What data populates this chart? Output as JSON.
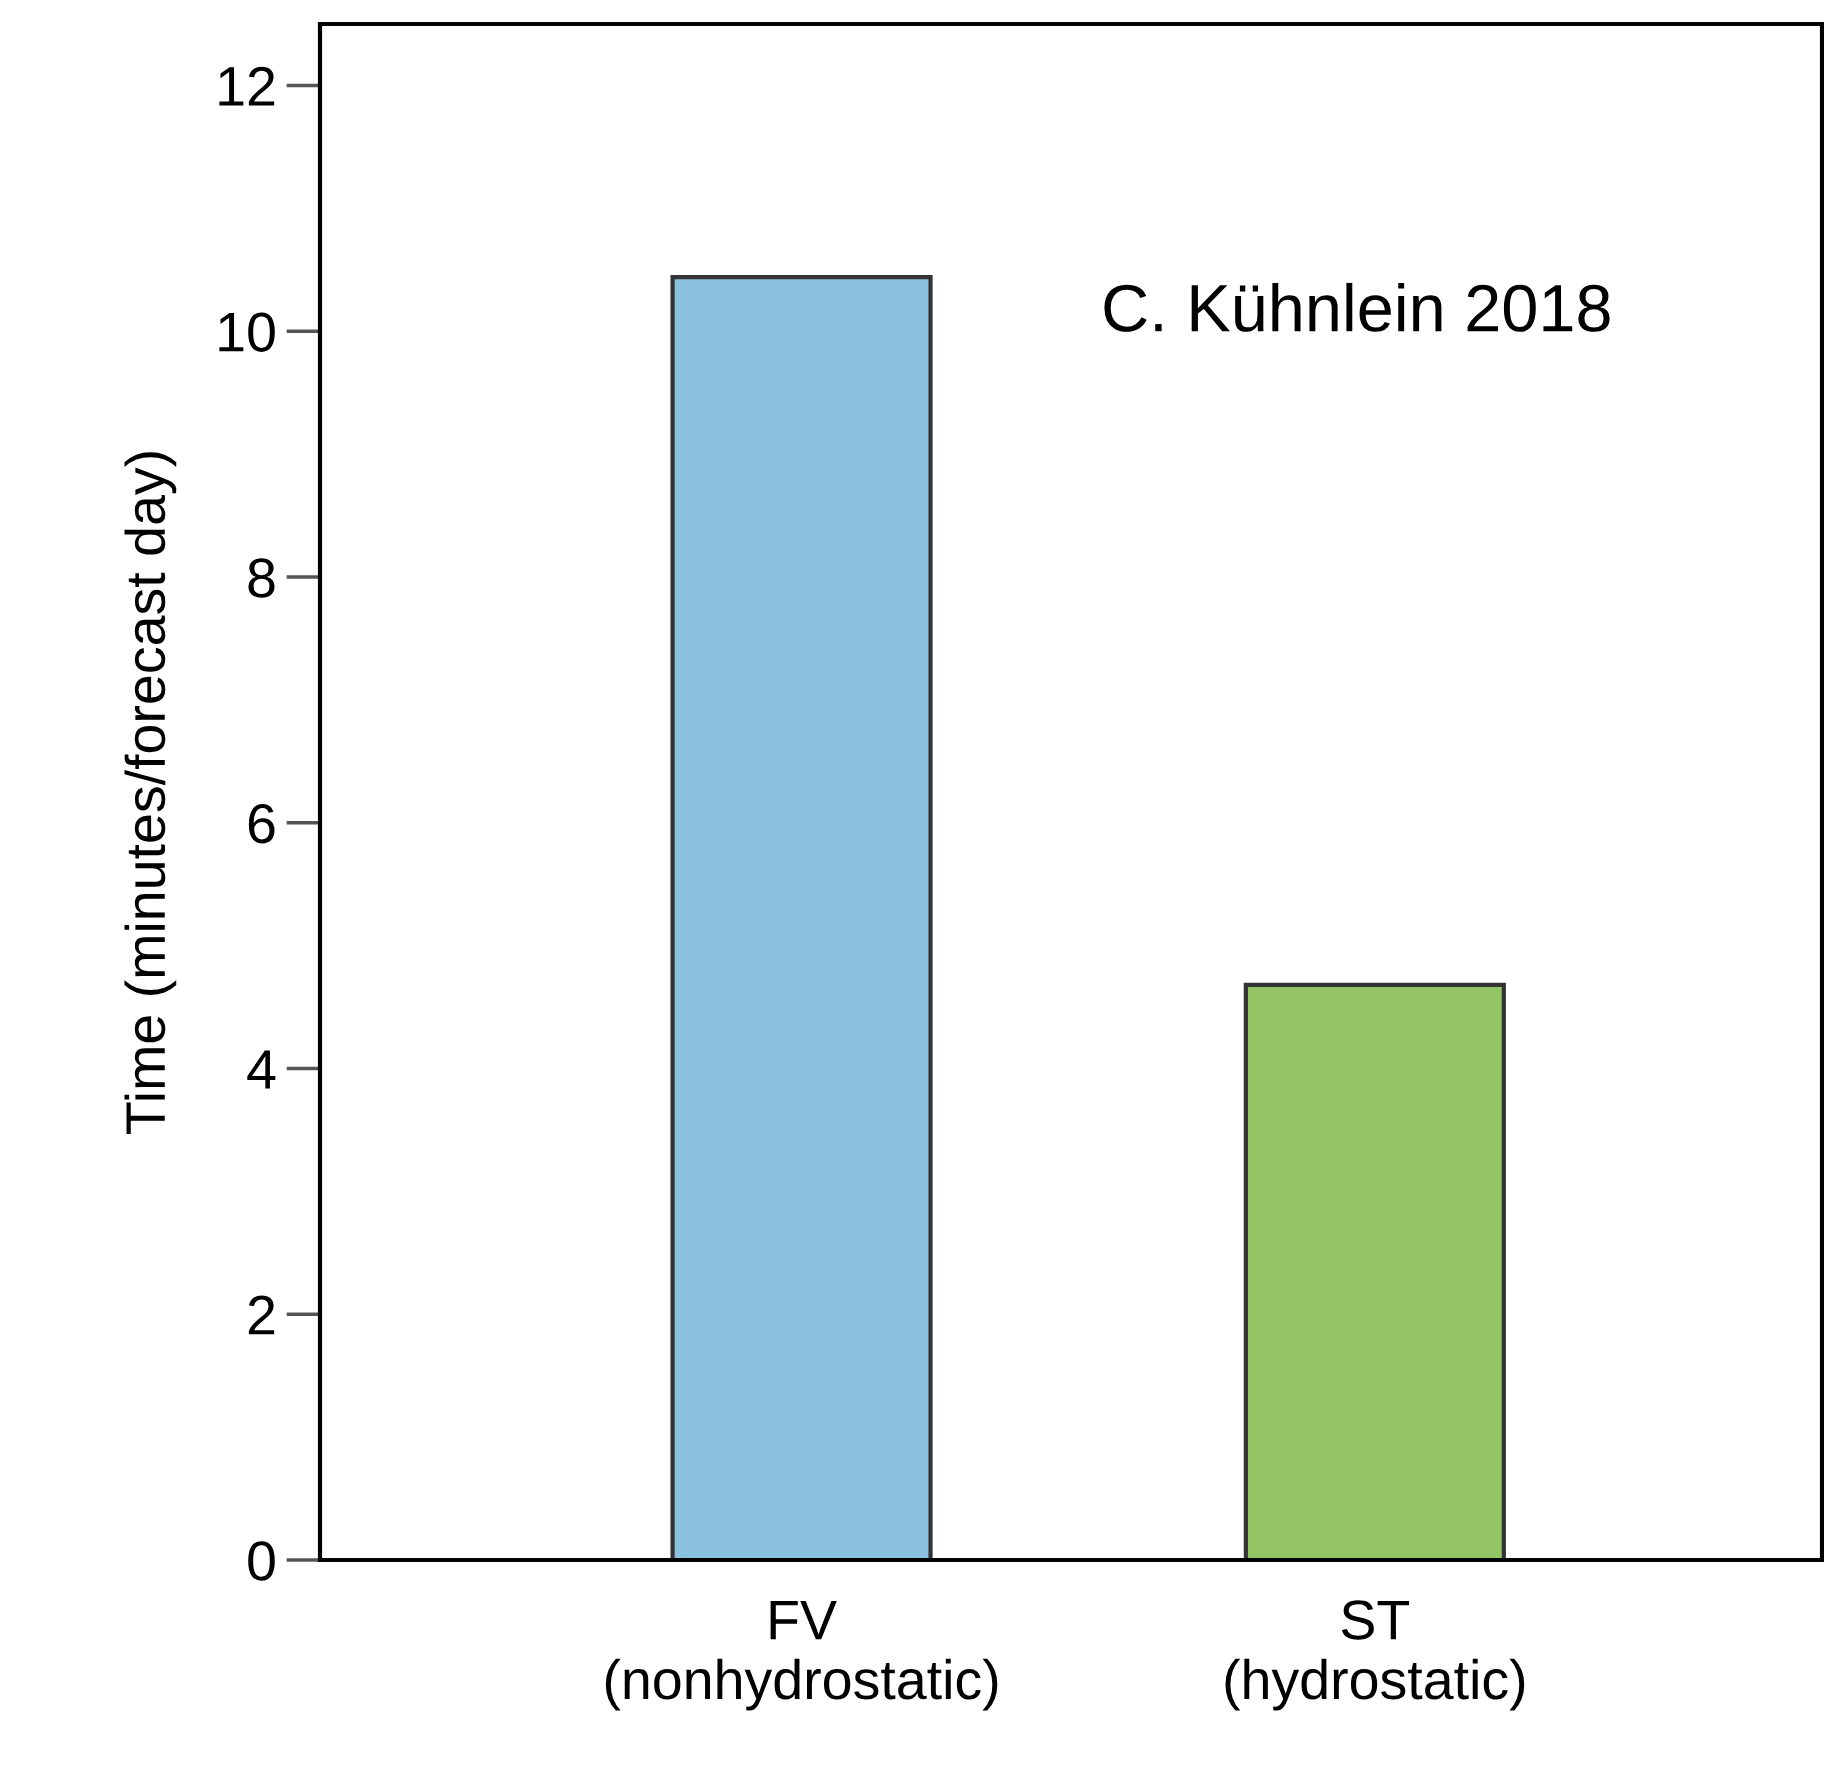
{
  "chart_data": {
    "type": "bar",
    "ylabel": "Time (minutes/forecast day)",
    "categories": [
      "FV\n(nonhydrostatic)",
      "ST\n(hydrostatic)"
    ],
    "values": [
      10.44,
      4.68
    ],
    "colors": [
      "#8ac2e0",
      "#93c564"
    ],
    "ylim": [
      0,
      12.5
    ],
    "yticks": [
      0,
      2,
      4,
      6,
      8,
      10,
      12
    ],
    "annotations": [
      "C. Kühnlein 2018"
    ],
    "grid": false,
    "legend": false
  }
}
